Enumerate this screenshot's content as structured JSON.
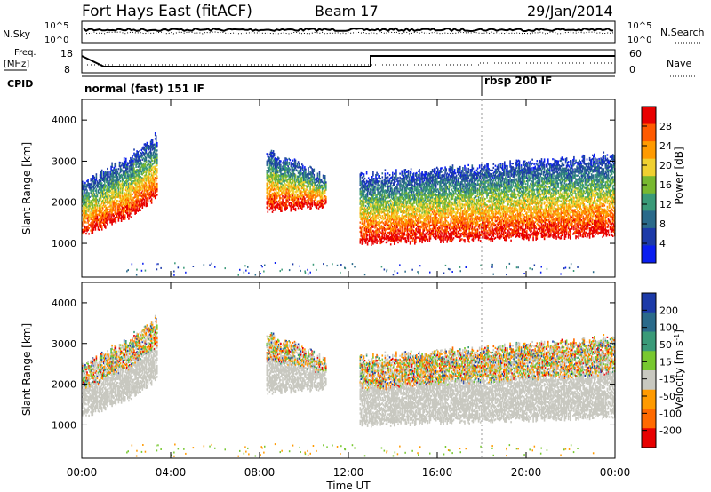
{
  "header": {
    "radar": "Fort Hays East (fitACF)",
    "beam": "Beam 17",
    "date": "29/Jan/2014"
  },
  "noise_panel": {
    "left_label": "N.Sky",
    "left_ticks": [
      "10^5",
      "10^0"
    ],
    "right_ticks": [
      "10^5",
      "10^0"
    ],
    "right_label": "N.Search"
  },
  "freq_panel": {
    "left_label_1": "Freq.",
    "left_label_2": "[MHz]",
    "left_ticks": [
      "18",
      "8"
    ],
    "right_ticks": [
      "60",
      "0"
    ],
    "right_label": "Nave",
    "freq_steps": [
      [
        0,
        15.5
      ],
      [
        1.0,
        10.5
      ],
      [
        13.0,
        10.5
      ],
      [
        13.0,
        15.5
      ],
      [
        24,
        15.5
      ]
    ]
  },
  "cpid_panel": {
    "label": "CPID",
    "modes": [
      {
        "name": "normal (fast) 151 IF",
        "start": 0
      },
      {
        "name": "rbsp 200 IF",
        "start": 18
      }
    ]
  },
  "chart_data": [
    {
      "type": "heatmap",
      "name": "power",
      "ylabel": "Slant Range [km]",
      "yticks": [
        1000,
        2000,
        3000,
        4000
      ],
      "ylim": [
        180,
        4500
      ],
      "colorbar": {
        "label": "Power [dB]",
        "ticks": [
          "28",
          "24",
          "20",
          "16",
          "12",
          "8",
          "4"
        ],
        "colors": [
          "#e80000",
          "#ff5a00",
          "#ff9a00",
          "#f0d030",
          "#78b830",
          "#3a9a78",
          "#2a6a8a",
          "#1c3aa8",
          "#0a1ef0"
        ]
      },
      "echo_regions": [
        {
          "start": 0.0,
          "end": 2.0,
          "lower": [
            1200,
            1600
          ],
          "upper": [
            2400,
            3000
          ],
          "max_dB": 28
        },
        {
          "start": 2.0,
          "end": 3.4,
          "lower": [
            1600,
            2100
          ],
          "upper": [
            3000,
            3600
          ],
          "max_dB": 20
        },
        {
          "start": 8.3,
          "end": 11.0,
          "lower": [
            1800,
            1900
          ],
          "upper": [
            3200,
            2600
          ],
          "max_dB": 20
        },
        {
          "start": 12.5,
          "end": 24.0,
          "lower": [
            1000,
            1200
          ],
          "upper": [
            2600,
            3100
          ],
          "max_dB": 30
        }
      ]
    },
    {
      "type": "heatmap",
      "name": "velocity",
      "ylabel": "Slant Range [km]",
      "yticks": [
        1000,
        2000,
        3000,
        4000
      ],
      "ylim": [
        180,
        4500
      ],
      "colorbar": {
        "label": "Velocity [m s",
        "label_sup": "-1",
        "label_end": "]",
        "ticks": [
          "200",
          "100",
          "50",
          "15",
          "-15",
          "-50",
          "-100",
          "-200"
        ],
        "colors": [
          "#1c3aa8",
          "#2a6a8a",
          "#3a9a78",
          "#78c830",
          "#c8c8c0",
          "#ff9a00",
          "#ff6a00",
          "#e80000"
        ]
      },
      "xlabel": "Time UT",
      "xticks": [
        "00:00",
        "04:00",
        "08:00",
        "12:00",
        "16:00",
        "20:00",
        "00:00"
      ],
      "xlim": [
        0,
        24
      ]
    }
  ],
  "colors": {
    "ground_scatter": "#c8c8c0"
  }
}
